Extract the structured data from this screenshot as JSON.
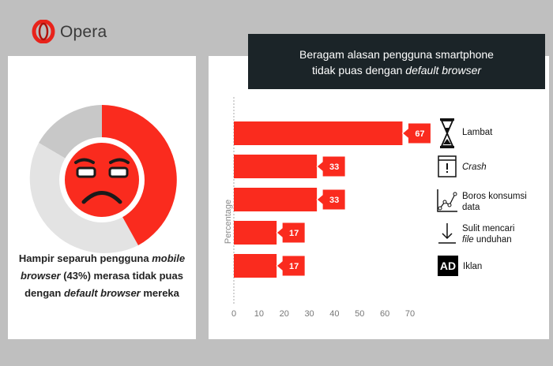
{
  "brand": {
    "name": "Opera",
    "logo_color": "#e8231b"
  },
  "colors": {
    "accent": "#fa2b1e",
    "donut_gray": "#e3e3e3",
    "donut_darkgray": "#c8c8c8",
    "title_bg": "#1b2428"
  },
  "left_panel": {
    "donut": {
      "value_pct": 43
    },
    "caption": {
      "line1_a": "Hampir separuh pengguna ",
      "line1_b": "mobile",
      "line2_a": "browser",
      "line2_b": " (43%) merasa tidak puas",
      "line3_a": "dengan ",
      "line3_b": "default browser",
      "line3_c": " mereka"
    }
  },
  "title": {
    "line1": "Beragam alasan pengguna smartphone",
    "line2_a": "tidak puas dengan ",
    "line2_b": "default browser"
  },
  "legend": [
    {
      "icon": "hourglass-icon",
      "label": "Lambat"
    },
    {
      "icon": "crash-window-icon",
      "label": "Crash"
    },
    {
      "icon": "line-chart-icon",
      "label_a": "Boros konsumsi",
      "label_b": "data"
    },
    {
      "icon": "download-arrow-icon",
      "label_a": "Sulit mencari",
      "label_b_italic": "file",
      "label_b_rest": " unduhan"
    },
    {
      "icon": "ad-badge-icon",
      "label": "Iklan",
      "badge_text": "AD"
    }
  ],
  "chart_data": {
    "type": "bar",
    "orientation": "horizontal",
    "categories": [
      "Lambat",
      "Crash",
      "Boros konsumsi data",
      "Sulit mencari file unduhan",
      "Iklan"
    ],
    "values": [
      67,
      33,
      33,
      17,
      17
    ],
    "ylabel": "Percentage",
    "xlim": [
      0,
      70
    ],
    "xticks": [
      0,
      10,
      20,
      30,
      40,
      50,
      60,
      70
    ],
    "grid": false
  }
}
